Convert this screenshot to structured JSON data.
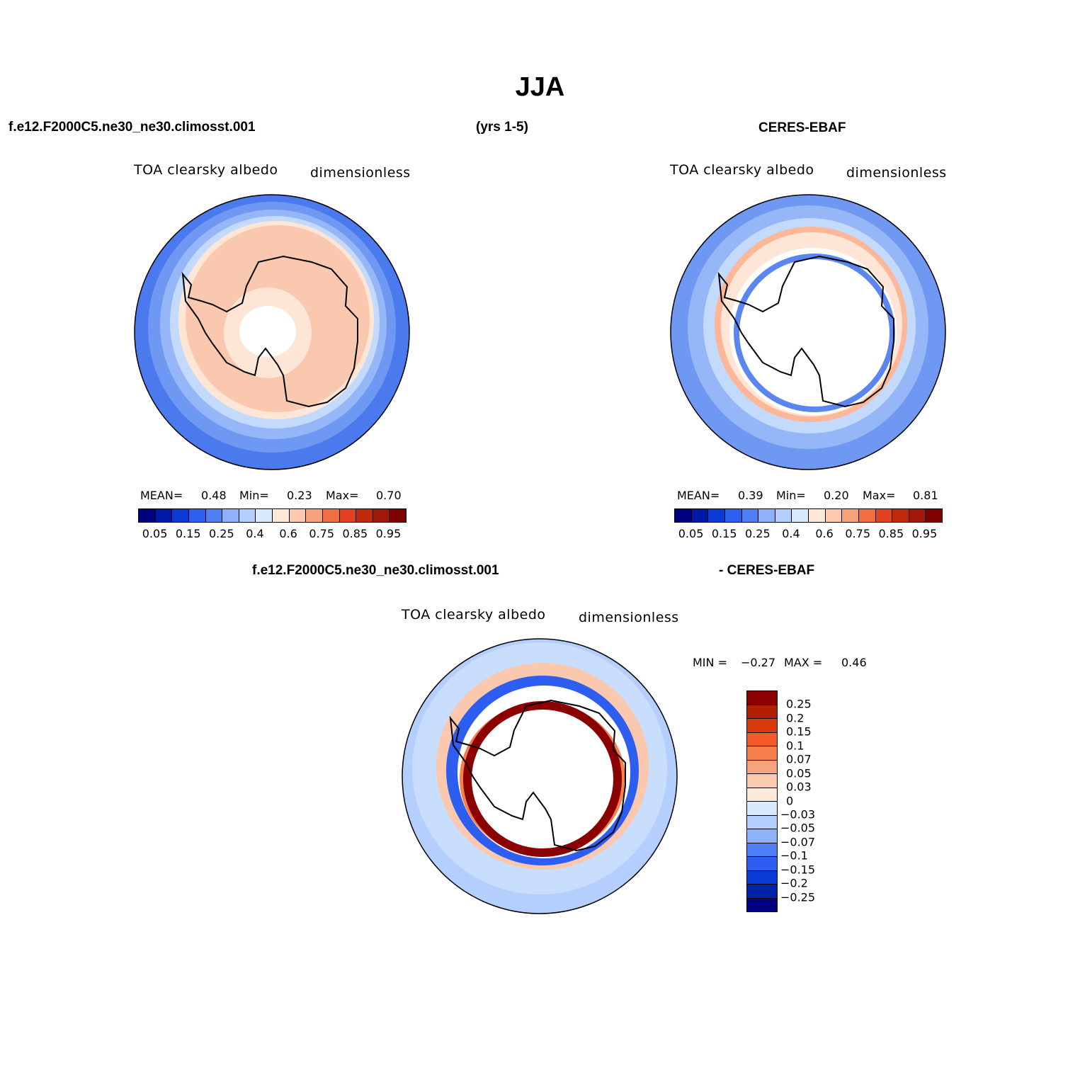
{
  "title": "JJA",
  "header": {
    "model": "f.e12.F2000C5.ne30_ne30.climosst.001",
    "years": "(yrs 1-5)",
    "obs": "CERES-EBAF",
    "diff_model": "f.e12.F2000C5.ne30_ne30.climosst.001",
    "diff_obs": "- CERES-EBAF"
  },
  "panels": {
    "model": {
      "variable": "TOA clearsky albedo",
      "units": "dimensionless",
      "mean_label": "MEAN=",
      "mean": "0.48",
      "min_label": "Min=",
      "min": "0.23",
      "max_label": "Max=",
      "max": "0.70"
    },
    "obs": {
      "variable": "TOA clearsky albedo",
      "units": "dimensionless",
      "mean_label": "MEAN=",
      "mean": "0.39",
      "min_label": "Min=",
      "min": "0.20",
      "max_label": "Max=",
      "max": "0.81"
    },
    "diff": {
      "variable": "TOA clearsky albedo",
      "units": "dimensionless",
      "min_label": "MIN =",
      "min": "−0.27",
      "max_label": "MAX =",
      "max": "0.46"
    }
  },
  "colorbar_abs": {
    "colors": [
      "#000080",
      "#0018a8",
      "#0a3ad6",
      "#2d5ff0",
      "#4f7ff5",
      "#8fb1fa",
      "#b4cffd",
      "#d9eaff",
      "#fde8d8",
      "#fcc9ae",
      "#f7a07a",
      "#f06e42",
      "#e24220",
      "#c02a0a",
      "#a01808",
      "#800000"
    ],
    "tick_labels": [
      "0.05",
      "0.15",
      "0.25",
      "0.4",
      "0.6",
      "0.75",
      "0.85",
      "0.95"
    ]
  },
  "colorbar_diff": {
    "colors": [
      "#8b0000",
      "#b22000",
      "#d83a0c",
      "#f35a26",
      "#f77f4c",
      "#f9a37e",
      "#fcc8ae",
      "#feeadd",
      "#d9eaff",
      "#b4cffd",
      "#8fb1fa",
      "#4f7ff5",
      "#2e5ef0",
      "#0a3ad6",
      "#0022a8",
      "#000080"
    ],
    "tick_labels": [
      "0.25",
      "0.2",
      "0.15",
      "0.1",
      "0.07",
      "0.05",
      "0.03",
      "0",
      "−0.03",
      "−0.05",
      "−0.07",
      "−0.1",
      "−0.15",
      "−0.2",
      "−0.25"
    ]
  }
}
